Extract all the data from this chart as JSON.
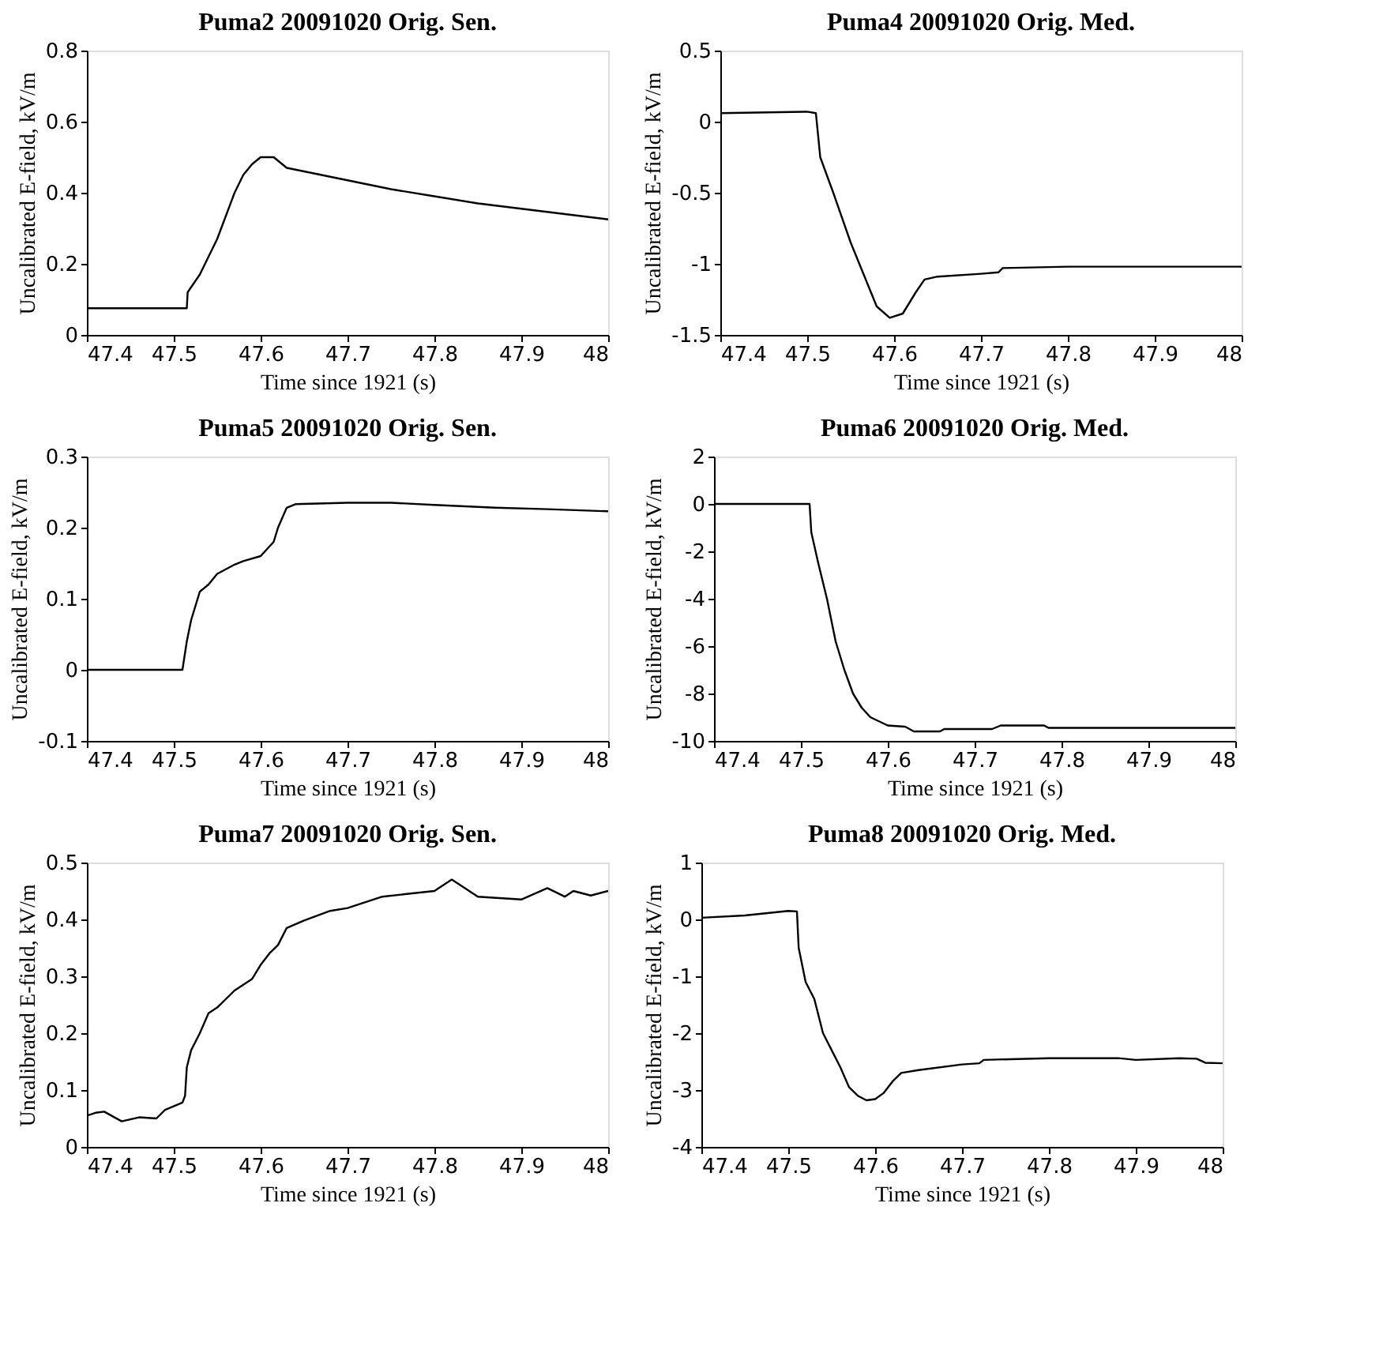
{
  "chart_data": [
    {
      "type": "line",
      "title": "Puma2 20091020 Orig. Sen.",
      "xlabel": "Time since 1921 (s)",
      "ylabel": "Uncalibrated E-field, kV/m",
      "color": "#000000",
      "xlim": [
        47.4,
        48
      ],
      "xticks": [
        47.4,
        47.5,
        47.6,
        47.7,
        47.8,
        47.9,
        48
      ],
      "ylim": [
        0,
        0.8
      ],
      "yticks": [
        0,
        0.2,
        0.4,
        0.6,
        0.8
      ],
      "grid": false,
      "x": [
        47.4,
        47.515,
        47.516,
        47.53,
        47.55,
        47.57,
        47.58,
        47.59,
        47.6,
        47.615,
        47.63,
        47.65,
        47.7,
        47.75,
        47.8,
        47.85,
        47.9,
        47.95,
        48
      ],
      "values": [
        0.075,
        0.075,
        0.12,
        0.17,
        0.27,
        0.4,
        0.45,
        0.48,
        0.5,
        0.5,
        0.47,
        0.46,
        0.435,
        0.41,
        0.39,
        0.37,
        0.355,
        0.34,
        0.325
      ]
    },
    {
      "type": "line",
      "title": "Puma4 20091020 Orig. Med.",
      "xlabel": "Time since 1921 (s)",
      "ylabel": "Uncalibrated E-field, kV/m",
      "color": "#000000",
      "xlim": [
        47.4,
        48
      ],
      "xticks": [
        47.4,
        47.5,
        47.6,
        47.7,
        47.8,
        47.9,
        48
      ],
      "ylim": [
        -1.5,
        0.5
      ],
      "yticks": [
        -1.5,
        -1,
        -0.5,
        0,
        0.5
      ],
      "grid": false,
      "x": [
        47.4,
        47.5,
        47.51,
        47.515,
        47.53,
        47.55,
        47.57,
        47.58,
        47.595,
        47.61,
        47.625,
        47.635,
        47.65,
        47.7,
        47.72,
        47.725,
        47.8,
        47.9,
        48
      ],
      "values": [
        0.06,
        0.07,
        0.06,
        -0.25,
        -0.5,
        -0.85,
        -1.15,
        -1.3,
        -1.38,
        -1.35,
        -1.2,
        -1.11,
        -1.09,
        -1.07,
        -1.06,
        -1.03,
        -1.02,
        -1.02,
        -1.02
      ]
    },
    {
      "type": "line",
      "title": "Puma5 20091020 Orig. Sen.",
      "xlabel": "Time since 1921 (s)",
      "ylabel": "Uncalibrated E-field, kV/m",
      "color": "#000000",
      "xlim": [
        47.4,
        48
      ],
      "xticks": [
        47.4,
        47.5,
        47.6,
        47.7,
        47.8,
        47.9,
        48
      ],
      "ylim": [
        -0.1,
        0.3
      ],
      "yticks": [
        -0.1,
        0,
        0.1,
        0.2,
        0.3
      ],
      "grid": false,
      "x": [
        47.4,
        47.51,
        47.515,
        47.52,
        47.53,
        47.54,
        47.55,
        47.57,
        47.58,
        47.6,
        47.615,
        47.62,
        47.63,
        47.64,
        47.7,
        47.75,
        47.8,
        47.87,
        47.93,
        48
      ],
      "values": [
        0,
        0,
        0.04,
        0.07,
        0.11,
        0.12,
        0.135,
        0.148,
        0.153,
        0.16,
        0.18,
        0.2,
        0.228,
        0.233,
        0.235,
        0.235,
        0.232,
        0.228,
        0.226,
        0.223
      ]
    },
    {
      "type": "line",
      "title": "Puma6 20091020 Orig. Med.",
      "xlabel": "Time since 1921 (s)",
      "ylabel": "Uncalibrated E-field, kV/m",
      "color": "#000000",
      "xlim": [
        47.4,
        48
      ],
      "xticks": [
        47.4,
        47.5,
        47.6,
        47.7,
        47.8,
        47.9,
        48
      ],
      "ylim": [
        -10,
        2
      ],
      "yticks": [
        -10,
        -8,
        -6,
        -4,
        -2,
        0,
        2
      ],
      "grid": false,
      "x": [
        47.4,
        47.51,
        47.512,
        47.52,
        47.53,
        47.54,
        47.55,
        47.56,
        47.57,
        47.58,
        47.6,
        47.62,
        47.63,
        47.66,
        47.665,
        47.72,
        47.73,
        47.78,
        47.785,
        48
      ],
      "values": [
        0,
        0,
        -1.2,
        -2.5,
        -4,
        -5.8,
        -7,
        -8,
        -8.6,
        -9,
        -9.35,
        -9.4,
        -9.6,
        -9.6,
        -9.5,
        -9.5,
        -9.35,
        -9.35,
        -9.45,
        -9.45
      ]
    },
    {
      "type": "line",
      "title": "Puma7 20091020 Orig. Sen.",
      "xlabel": "Time since 1921 (s)",
      "ylabel": "Uncalibrated E-field, kV/m",
      "color": "#000000",
      "xlim": [
        47.4,
        48
      ],
      "xticks": [
        47.4,
        47.5,
        47.6,
        47.7,
        47.8,
        47.9,
        48
      ],
      "ylim": [
        0,
        0.5
      ],
      "yticks": [
        0,
        0.1,
        0.2,
        0.3,
        0.4,
        0.5
      ],
      "grid": false,
      "x": [
        47.4,
        47.41,
        47.42,
        47.44,
        47.46,
        47.48,
        47.49,
        47.51,
        47.513,
        47.515,
        47.52,
        47.53,
        47.54,
        47.55,
        47.57,
        47.59,
        47.6,
        47.61,
        47.62,
        47.63,
        47.65,
        47.68,
        47.7,
        47.74,
        47.8,
        47.82,
        47.85,
        47.9,
        47.93,
        47.95,
        47.96,
        47.98,
        48
      ],
      "values": [
        0.055,
        0.06,
        0.062,
        0.045,
        0.052,
        0.05,
        0.065,
        0.078,
        0.09,
        0.14,
        0.17,
        0.2,
        0.235,
        0.245,
        0.275,
        0.295,
        0.32,
        0.34,
        0.355,
        0.385,
        0.398,
        0.415,
        0.42,
        0.44,
        0.45,
        0.47,
        0.44,
        0.435,
        0.455,
        0.44,
        0.45,
        0.442,
        0.45
      ]
    },
    {
      "type": "line",
      "title": "Puma8 20091020 Orig. Med.",
      "xlabel": "Time since 1921 (s)",
      "ylabel": "Uncalibrated E-field, kV/m",
      "color": "#000000",
      "xlim": [
        47.4,
        48
      ],
      "xticks": [
        47.4,
        47.5,
        47.6,
        47.7,
        47.8,
        47.9,
        48
      ],
      "ylim": [
        -4,
        1
      ],
      "yticks": [
        -4,
        -3,
        -2,
        -1,
        0,
        1
      ],
      "grid": false,
      "x": [
        47.4,
        47.45,
        47.5,
        47.51,
        47.512,
        47.52,
        47.53,
        47.54,
        47.55,
        47.56,
        47.57,
        47.58,
        47.59,
        47.6,
        47.61,
        47.62,
        47.63,
        47.65,
        47.7,
        47.72,
        47.725,
        47.8,
        47.88,
        47.9,
        47.95,
        47.97,
        47.98,
        48
      ],
      "values": [
        0.03,
        0.07,
        0.15,
        0.14,
        -0.5,
        -1.1,
        -1.4,
        -2.0,
        -2.3,
        -2.6,
        -2.95,
        -3.1,
        -3.18,
        -3.16,
        -3.05,
        -2.85,
        -2.7,
        -2.65,
        -2.55,
        -2.53,
        -2.47,
        -2.44,
        -2.44,
        -2.47,
        -2.44,
        -2.45,
        -2.52,
        -2.53
      ]
    }
  ]
}
